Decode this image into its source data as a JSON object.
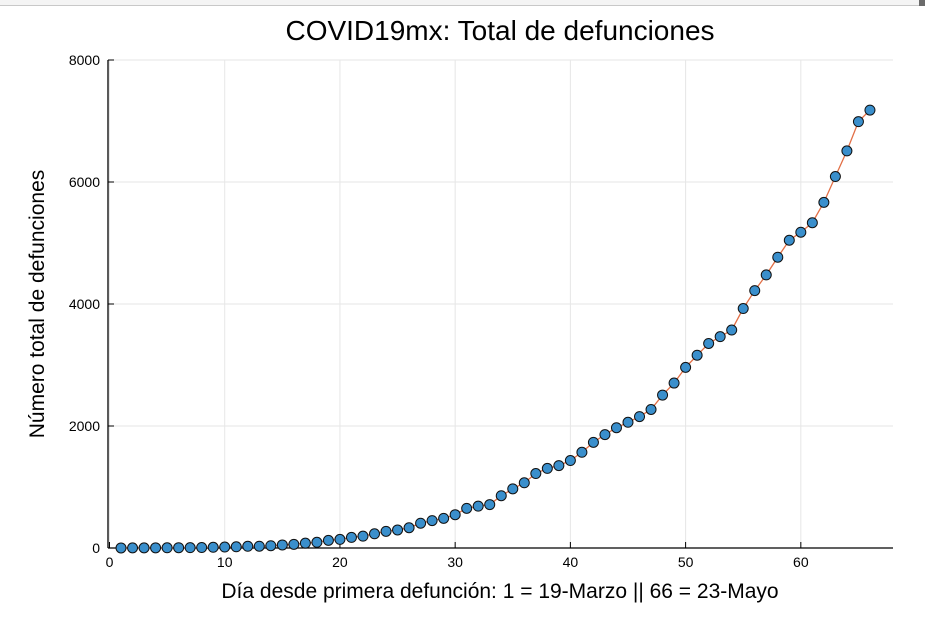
{
  "chart_data": {
    "type": "line",
    "title": "COVID19mx: Total de defunciones",
    "xlabel": "Día desde primera defunción: 1 = 19-Marzo || 66 = 23-Mayo",
    "ylabel": "Número total de defunciones",
    "xlim": [
      0,
      68
    ],
    "ylim": [
      0,
      8000
    ],
    "xticks": [
      0,
      10,
      20,
      30,
      40,
      50,
      60
    ],
    "yticks": [
      0,
      2000,
      4000,
      6000,
      8000
    ],
    "grid": true,
    "legend": "none",
    "line_color": "#e26f46",
    "marker_color": "#3a8fcc",
    "series": [
      {
        "x": [
          1,
          2,
          3,
          4,
          5,
          6,
          7,
          8,
          9,
          10,
          11,
          12,
          13,
          14,
          15,
          16,
          17,
          18,
          19,
          20,
          21,
          22,
          23,
          24,
          25,
          26,
          27,
          28,
          29,
          30,
          31,
          32,
          33,
          34,
          35,
          36,
          37,
          38,
          39,
          40,
          41,
          42,
          43,
          44,
          45,
          46,
          47,
          48,
          49,
          50,
          51,
          52,
          53,
          54,
          55,
          56,
          57,
          58,
          59,
          60,
          61,
          62,
          63,
          64,
          65,
          66
        ],
        "y": [
          1,
          2,
          2,
          3,
          4,
          5,
          6,
          8,
          12,
          16,
          20,
          28,
          29,
          37,
          50,
          60,
          79,
          94,
          125,
          141,
          174,
          194,
          233,
          273,
          296,
          332,
          406,
          449,
          486,
          546,
          650,
          686,
          712,
          857,
          970,
          1069,
          1221,
          1305,
          1351,
          1434,
          1569,
          1732,
          1859,
          1972,
          2061,
          2154,
          2271,
          2507,
          2704,
          2961,
          3160,
          3353,
          3465,
          3573,
          3926,
          4220,
          4477,
          4767,
          5045,
          5177,
          5332,
          5666,
          6090,
          6510,
          6989,
          7179
        ]
      }
    ]
  }
}
